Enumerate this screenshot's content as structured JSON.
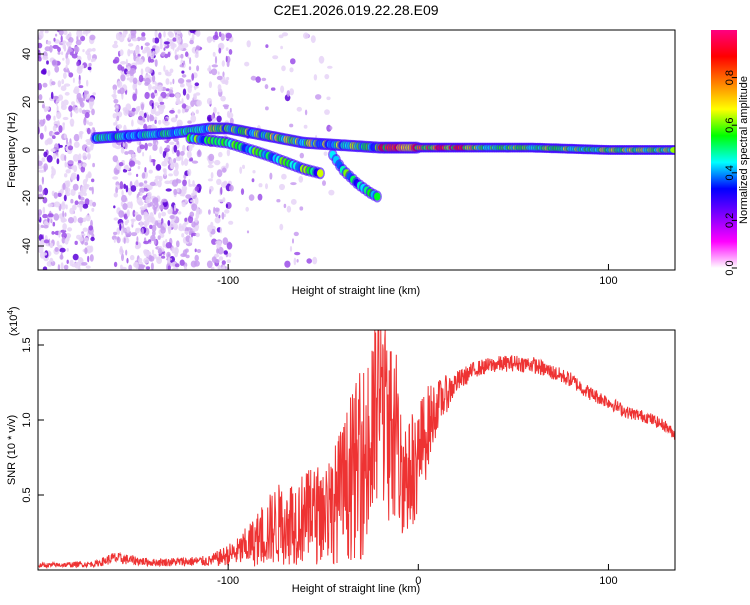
{
  "figure_title": "C2E1.2026.019.22.28.E09",
  "chart_data": [
    {
      "type": "heatmap",
      "name": "spectrogram",
      "xlabel": "Height of straight line (km)",
      "ylabel": "Frequency (Hz)",
      "xlim": [
        -200,
        135
      ],
      "ylim": [
        -50,
        50
      ],
      "x_ticks": [
        -100,
        100
      ],
      "x_tick_labels": [
        "-100",
        "100"
      ],
      "y_ticks": [
        -40,
        -20,
        0,
        20,
        40
      ],
      "y_tick_labels": [
        "-40",
        "-20",
        "0",
        "20",
        "40"
      ],
      "colorbar": {
        "label": "Normalized spectral amplitude",
        "range": [
          0,
          1
        ],
        "ticks": [
          0.0,
          0.2,
          0.4,
          0.6,
          0.8
        ],
        "tick_labels": [
          "0.0",
          "0.2",
          "0.4",
          "0.6",
          "0.8"
        ],
        "colors": [
          "#ffffff",
          "#ff00ff",
          "#8000ff",
          "#0000ff",
          "#00ffff",
          "#00ff00",
          "#ffff00",
          "#ff8000",
          "#ff0000",
          "#ff0080"
        ]
      },
      "tracks": [
        {
          "name": "carrier",
          "points": [
            [
              -170,
              5
            ],
            [
              -130,
              7
            ],
            [
              -110,
              9
            ],
            [
              -100,
              9
            ],
            [
              -80,
              6
            ],
            [
              -60,
              3
            ],
            [
              -40,
              2
            ],
            [
              -20,
              1
            ],
            [
              0,
              1
            ],
            [
              20,
              1
            ],
            [
              60,
              1
            ],
            [
              100,
              0
            ],
            [
              135,
              0
            ]
          ]
        },
        {
          "name": "lower-branch-a",
          "points": [
            [
              -120,
              5
            ],
            [
              -100,
              3
            ],
            [
              -80,
              -2
            ],
            [
              -60,
              -8
            ],
            [
              -50,
              -10
            ]
          ]
        },
        {
          "name": "lower-branch-b",
          "points": [
            [
              -45,
              -2
            ],
            [
              -40,
              -8
            ],
            [
              -32,
              -14
            ],
            [
              -25,
              -18
            ],
            [
              -20,
              -20
            ]
          ]
        }
      ]
    },
    {
      "type": "line",
      "name": "snr",
      "xlabel": "Height of straight line (km)",
      "ylabel": "SNR (10 * v/v)",
      "ylabel_exponent": "(x10",
      "ylabel_exponent_power": "4",
      "ylabel_exponent_close": ")",
      "xlim": [
        -200,
        135
      ],
      "ylim": [
        0,
        1.6
      ],
      "x_ticks": [
        -100,
        0,
        100
      ],
      "x_tick_labels": [
        "-100",
        "0",
        "100"
      ],
      "y_ticks": [
        0.5,
        1.0,
        1.5
      ],
      "y_tick_labels": [
        "0.5",
        "1.0",
        "1.5"
      ],
      "color": "#ee3333",
      "envelope": {
        "x": [
          -200,
          -170,
          -160,
          -140,
          -110,
          -95,
          -85,
          -75,
          -65,
          -55,
          -45,
          -35,
          -25,
          -20,
          -15,
          -10,
          -5,
          0,
          5,
          10,
          20,
          30,
          40,
          50,
          60,
          70,
          80,
          90,
          100,
          110,
          120,
          130,
          135
        ],
        "y": [
          0.03,
          0.04,
          0.08,
          0.05,
          0.06,
          0.12,
          0.2,
          0.3,
          0.33,
          0.36,
          0.42,
          0.62,
          0.8,
          1.2,
          0.95,
          0.7,
          0.62,
          0.75,
          0.95,
          1.1,
          1.25,
          1.34,
          1.37,
          1.38,
          1.37,
          1.32,
          1.27,
          1.18,
          1.12,
          1.05,
          1.02,
          0.96,
          0.9
        ],
        "noise_fraction": [
          0.5,
          0.5,
          0.5,
          0.5,
          0.6,
          0.8,
          0.9,
          0.9,
          0.9,
          0.9,
          0.9,
          0.9,
          0.9,
          0.6,
          0.7,
          0.7,
          0.6,
          0.5,
          0.3,
          0.15,
          0.06,
          0.04,
          0.04,
          0.04,
          0.04,
          0.04,
          0.04,
          0.04,
          0.04,
          0.04,
          0.04,
          0.04,
          0.04
        ],
        "spike_max": 1.6
      }
    }
  ]
}
